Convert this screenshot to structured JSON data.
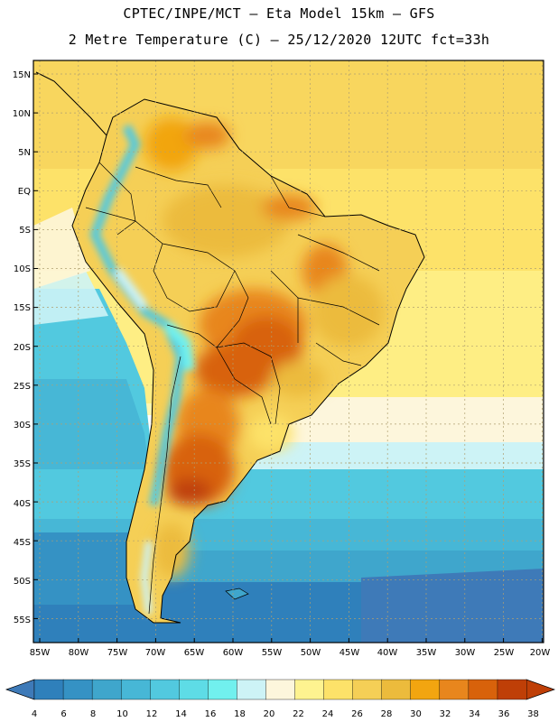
{
  "header": {
    "line1": "CPTEC/INPE/MCT –  Eta Model 15km – GFS",
    "line2": "2 Metre Temperature (C) – 25/12/2020 12UTC fct=33h"
  },
  "map": {
    "lat_labels": [
      "15N",
      "10N",
      "5N",
      "EQ",
      "5S",
      "10S",
      "15S",
      "20S",
      "25S",
      "30S",
      "35S",
      "40S",
      "45S",
      "50S",
      "55S"
    ],
    "lon_labels": [
      "85W",
      "80W",
      "75W",
      "70W",
      "65W",
      "60W",
      "55W",
      "50W",
      "45W",
      "40W",
      "35W",
      "30W",
      "25W",
      "20W"
    ]
  },
  "colorbar": {
    "values": [
      "4",
      "6",
      "8",
      "10",
      "12",
      "14",
      "16",
      "18",
      "20",
      "22",
      "24",
      "26",
      "28",
      "30",
      "32",
      "34",
      "36",
      "38"
    ],
    "colors": [
      "#3e7ab8",
      "#2f80bb",
      "#3592c4",
      "#3fa6cc",
      "#47b7d6",
      "#52c9df",
      "#5edce6",
      "#71f0ee",
      "#cdf3f6",
      "#fdf6dc",
      "#fef390",
      "#fde269",
      "#f5cf56",
      "#ecbb3c",
      "#f2a510",
      "#e8861d",
      "#d8620b",
      "#bf3f07"
    ],
    "low_color": "#3e7ab8",
    "high_color": "#bf3f07"
  }
}
